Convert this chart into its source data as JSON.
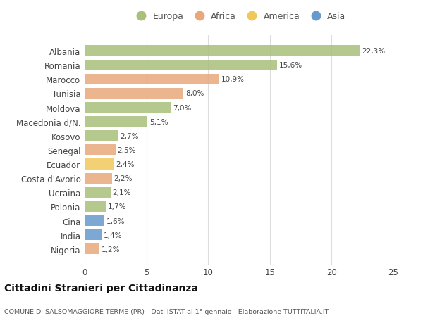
{
  "countries": [
    "Albania",
    "Romania",
    "Marocco",
    "Tunisia",
    "Moldova",
    "Macedonia d/N.",
    "Kosovo",
    "Senegal",
    "Ecuador",
    "Costa d'Avorio",
    "Ucraina",
    "Polonia",
    "Cina",
    "India",
    "Nigeria"
  ],
  "values": [
    22.3,
    15.6,
    10.9,
    8.0,
    7.0,
    5.1,
    2.7,
    2.5,
    2.4,
    2.2,
    2.1,
    1.7,
    1.6,
    1.4,
    1.2
  ],
  "labels": [
    "22,3%",
    "15,6%",
    "10,9%",
    "8,0%",
    "7,0%",
    "5,1%",
    "2,7%",
    "2,5%",
    "2,4%",
    "2,2%",
    "2,1%",
    "1,7%",
    "1,6%",
    "1,4%",
    "1,2%"
  ],
  "regions": [
    "Europa",
    "Europa",
    "Africa",
    "Africa",
    "Europa",
    "Europa",
    "Europa",
    "Africa",
    "America",
    "Africa",
    "Europa",
    "Europa",
    "Asia",
    "Asia",
    "Africa"
  ],
  "region_colors": {
    "Europa": "#a8c07a",
    "Africa": "#e8a87c",
    "America": "#f0c85a",
    "Asia": "#6699cc"
  },
  "legend_order": [
    "Europa",
    "Africa",
    "America",
    "Asia"
  ],
  "title": "Cittadini Stranieri per Cittadinanza",
  "subtitle": "COMUNE DI SALSOMAGGIORE TERME (PR) - Dati ISTAT al 1° gennaio - Elaborazione TUTTITALIA.IT",
  "xlim": [
    0,
    25
  ],
  "xticks": [
    0,
    5,
    10,
    15,
    20,
    25
  ],
  "bg_color": "#ffffff",
  "grid_color": "#dddddd",
  "bar_height": 0.75
}
